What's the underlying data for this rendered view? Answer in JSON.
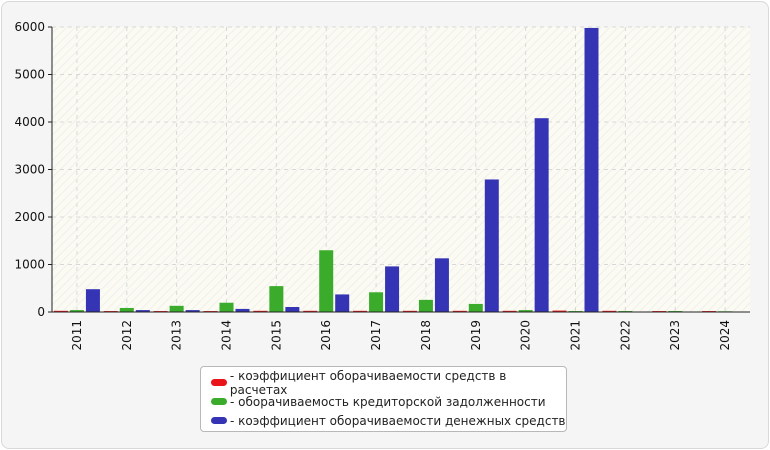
{
  "chart_data": {
    "type": "bar",
    "categories": [
      "2011",
      "2012",
      "2013",
      "2014",
      "2015",
      "2016",
      "2017",
      "2018",
      "2019",
      "2020",
      "2021",
      "2022",
      "2023",
      "2024"
    ],
    "series": [
      {
        "name": "коэффициент оборачиваемости средств в расчетах",
        "color": "#e8141a",
        "values": [
          25,
          20,
          20,
          20,
          25,
          25,
          25,
          25,
          25,
          25,
          30,
          25,
          20,
          20
        ]
      },
      {
        "name": "оборачиваемость кредиторской задолженности",
        "color": "#3aab2a",
        "values": [
          40,
          85,
          130,
          195,
          545,
          1300,
          415,
          255,
          170,
          40,
          20,
          20,
          20,
          15
        ]
      },
      {
        "name": "коэффициент оборачиваемости денежных средств",
        "color": "#3434b4",
        "values": [
          480,
          40,
          40,
          65,
          105,
          370,
          960,
          1130,
          2790,
          4080,
          5980,
          0,
          0,
          0
        ]
      }
    ],
    "ylim": [
      0,
      6000
    ],
    "yticks": [
      0,
      1000,
      2000,
      3000,
      4000,
      5000,
      6000
    ],
    "grid": true,
    "legend": "bottom",
    "xlabel": "",
    "ylabel": ""
  }
}
